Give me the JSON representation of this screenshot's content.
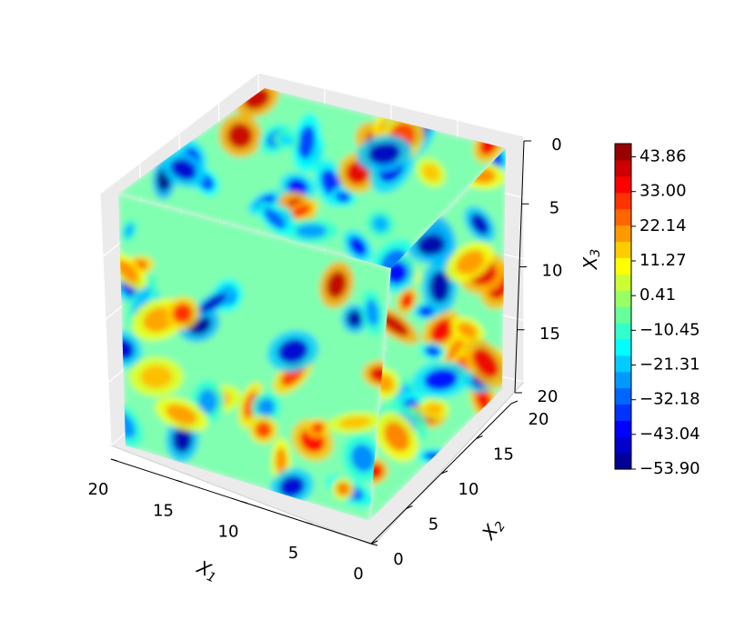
{
  "chart_data": {
    "type": "3d-volume-contour",
    "axes": {
      "x1": {
        "label": "X",
        "sub": "1",
        "ticks": [
          0,
          5,
          10,
          15,
          20
        ],
        "range": [
          0,
          20
        ]
      },
      "x2": {
        "label": "X",
        "sub": "2",
        "ticks": [
          0,
          5,
          10,
          15,
          20
        ],
        "range": [
          0,
          20
        ]
      },
      "x3": {
        "label": "X",
        "sub": "3",
        "ticks": [
          0,
          5,
          10,
          15,
          20
        ],
        "range": [
          0,
          20
        ],
        "inverted": true
      }
    },
    "colorbar": {
      "colormap": "jet",
      "range": [
        -53.9,
        48.0
      ],
      "tick_values": [
        43.86,
        33.0,
        22.14,
        11.27,
        0.41,
        -10.45,
        -21.31,
        -32.18,
        -43.04,
        -53.9
      ],
      "tick_labels": [
        "43.86",
        "33.00",
        "22.14",
        "11.27",
        "0.41",
        "−10.45",
        "−21.31",
        "−32.18",
        "−43.04",
        "−53.90"
      ],
      "levels": 20
    },
    "grid": true,
    "pane_color": "#ebebeb",
    "background_level_color": "#80ffb0"
  }
}
